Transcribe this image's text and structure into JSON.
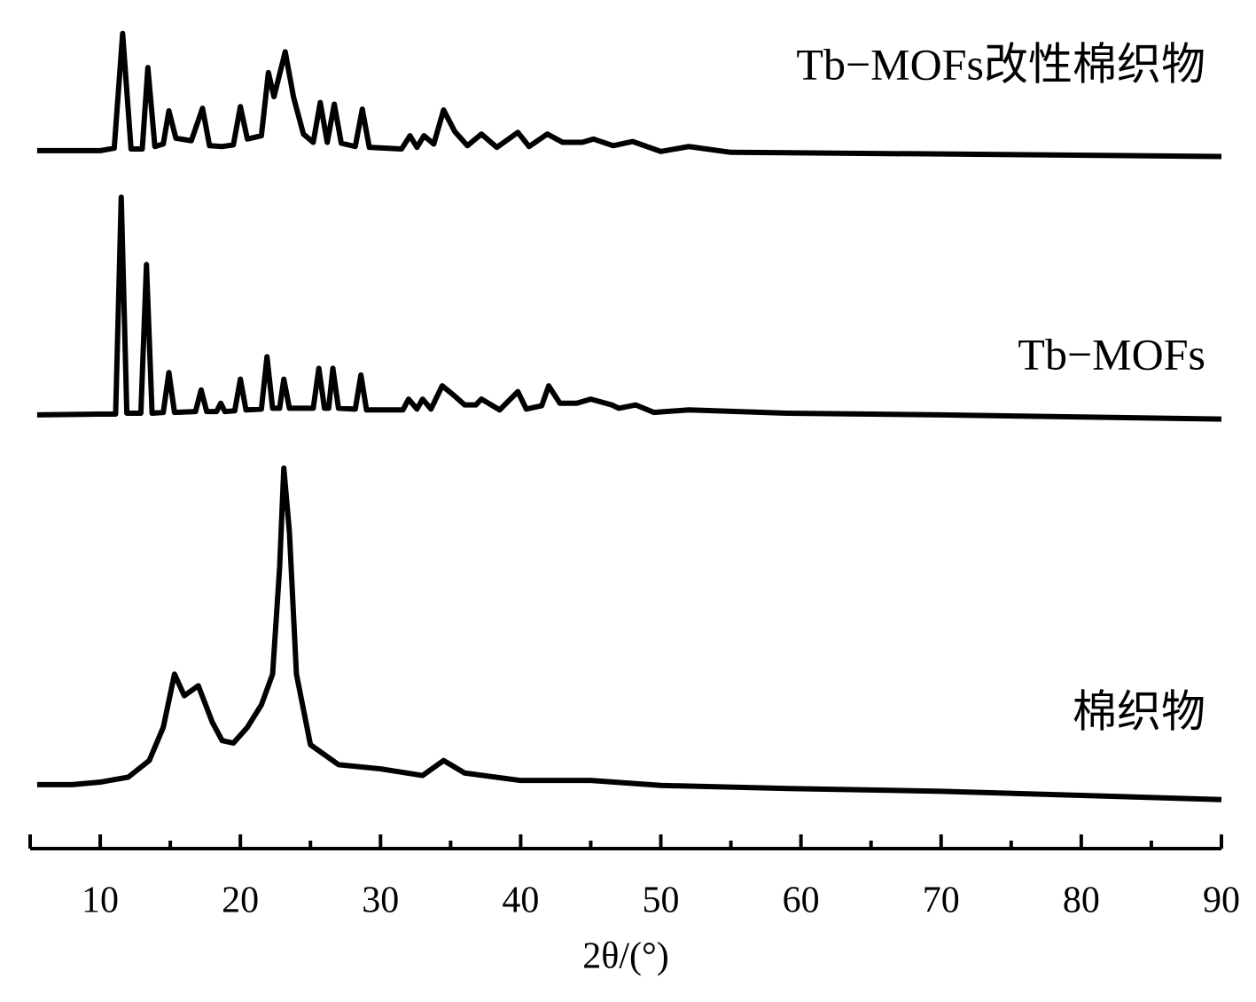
{
  "chart_data": {
    "type": "line",
    "x_label": "2θ/(°)",
    "xlim": [
      5,
      90
    ],
    "xticks": [
      10,
      20,
      30,
      40,
      50,
      60,
      70,
      80,
      90
    ],
    "xminorticks": [
      15,
      25,
      35,
      45,
      55,
      65,
      75,
      85
    ],
    "ylim": [
      0,
      100
    ],
    "series": [
      {
        "name": "Tb−MOFs改性棉织物",
        "color": "#000000",
        "x": [
          5.5,
          10,
          11,
          11.6,
          12.2,
          13,
          13.4,
          13.9,
          14.5,
          14.9,
          15.4,
          16.5,
          17.3,
          17.8,
          18.7,
          19.5,
          20,
          20.5,
          21.5,
          22,
          22.4,
          23.2,
          23.8,
          24.5,
          25.2,
          25.7,
          26.2,
          26.7,
          27.2,
          28.2,
          28.7,
          29.2,
          31.5,
          32.1,
          32.6,
          33.1,
          33.8,
          34.5,
          35.3,
          36.2,
          37.2,
          38.3,
          39.8,
          40.6,
          41.9,
          43,
          44.4,
          45.2,
          46.6,
          48,
          50,
          52,
          55,
          70,
          90
        ],
        "values": [
          84.0,
          84.0,
          84.3,
          98.1,
          84.2,
          84.2,
          94.0,
          84.5,
          84.8,
          88.8,
          85.5,
          85.2,
          89.1,
          84.6,
          84.5,
          84.7,
          89.3,
          85.4,
          85.8,
          93.4,
          90.5,
          95.9,
          90.4,
          86.0,
          85.0,
          89.8,
          85.0,
          89.6,
          84.9,
          84.5,
          89.0,
          84.4,
          84.2,
          85.8,
          84.4,
          85.8,
          84.8,
          88.9,
          86.3,
          84.6,
          86.0,
          84.4,
          86.2,
          84.5,
          86.0,
          85.0,
          85.0,
          85.4,
          84.6,
          85.1,
          83.9,
          84.5,
          83.8,
          83.6,
          83.3
        ]
      },
      {
        "name": "Tb−MOFs",
        "color": "#000000",
        "x": [
          5.5,
          10,
          11.1,
          11.5,
          11.9,
          12.9,
          13.3,
          13.7,
          14.5,
          14.9,
          15.3,
          16.8,
          17.2,
          17.6,
          18.3,
          18.6,
          18.9,
          19.6,
          20,
          20.4,
          21.5,
          21.9,
          22.3,
          22.8,
          23.1,
          23.5,
          25.2,
          25.6,
          26,
          26.3,
          26.6,
          27,
          28.2,
          28.6,
          29,
          31.6,
          32,
          32.6,
          33,
          33.6,
          34.4,
          35.2,
          36,
          36.8,
          37.2,
          38.5,
          39.8,
          40.4,
          41.5,
          42,
          42.8,
          43,
          44,
          45,
          46.5,
          47,
          48.2,
          49.5,
          52,
          59,
          70,
          90
        ],
        "values": [
          52.2,
          52.3,
          52.3,
          78.4,
          52.4,
          52.4,
          70.3,
          52.4,
          52.5,
          57.3,
          52.5,
          52.6,
          55.2,
          52.6,
          52.6,
          53.6,
          52.6,
          52.7,
          56.5,
          52.8,
          52.9,
          59.2,
          53.0,
          53.0,
          56.5,
          53.0,
          53.0,
          57.8,
          53.0,
          53.0,
          57.8,
          53.0,
          52.9,
          57.0,
          52.8,
          52.8,
          54.1,
          52.9,
          54.1,
          52.9,
          55.7,
          54.6,
          53.4,
          53.4,
          54.1,
          52.8,
          55.0,
          52.9,
          53.3,
          55.7,
          53.6,
          53.6,
          53.6,
          54.1,
          53.4,
          53.0,
          53.4,
          52.5,
          52.8,
          52.4,
          52.2,
          51.7
        ]
      },
      {
        "name": "棉织物",
        "color": "#000000",
        "x": [
          5.5,
          8,
          10,
          12,
          13.5,
          14.5,
          15.3,
          16,
          17,
          18,
          18.7,
          19.5,
          20.5,
          21.5,
          22.3,
          22.8,
          23.1,
          23.5,
          24,
          25,
          27,
          30,
          33,
          34.5,
          36,
          40,
          45,
          50,
          60,
          70,
          90
        ],
        "values": [
          7.7,
          7.7,
          8.0,
          8.6,
          10.6,
          14.6,
          21.0,
          18.4,
          19.6,
          15.2,
          13.0,
          12.7,
          14.6,
          17.3,
          21.0,
          33.8,
          45.8,
          38.1,
          21.0,
          12.5,
          10.1,
          9.6,
          8.8,
          10.6,
          9.1,
          8.2,
          8.2,
          7.6,
          7.2,
          6.9,
          5.9
        ]
      }
    ]
  }
}
